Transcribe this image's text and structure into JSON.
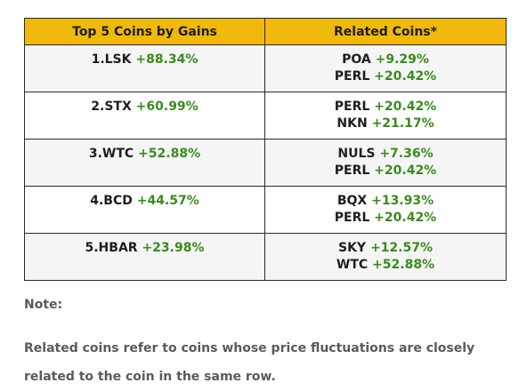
{
  "table": {
    "headers": [
      "Top 5 Coins by Gains",
      "Related Coins*"
    ],
    "rows": [
      {
        "top_symbol": "1.LSK",
        "top_gain": "+88.34%",
        "related": [
          {
            "symbol": "POA",
            "gain": "+9.29%"
          },
          {
            "symbol": "PERL",
            "gain": "+20.42%"
          }
        ]
      },
      {
        "top_symbol": "2.STX",
        "top_gain": "+60.99%",
        "related": [
          {
            "symbol": "PERL",
            "gain": "+20.42%"
          },
          {
            "symbol": "NKN",
            "gain": "+21.17%"
          }
        ]
      },
      {
        "top_symbol": "3.WTC",
        "top_gain": "+52.88%",
        "related": [
          {
            "symbol": "NULS",
            "gain": "+7.36%"
          },
          {
            "symbol": "PERL",
            "gain": "+20.42%"
          }
        ]
      },
      {
        "top_symbol": "4.BCD",
        "top_gain": "+44.57%",
        "related": [
          {
            "symbol": "BQX",
            "gain": "+13.93%"
          },
          {
            "symbol": "PERL",
            "gain": "+20.42%"
          }
        ]
      },
      {
        "top_symbol": "5.HBAR",
        "top_gain": "+23.98%",
        "related": [
          {
            "symbol": "SKY",
            "gain": "+12.57%"
          },
          {
            "symbol": "WTC",
            "gain": "+52.88%"
          }
        ]
      }
    ]
  },
  "note": {
    "label": "Note:",
    "text": "Related coins refer to coins whose price fluctuations are closely related to the coin in the same row."
  },
  "colors": {
    "header_bg": "#f0b90b",
    "gain_green": "#3a8a1f",
    "alt_row_bg": "#f5f5f5",
    "note_text": "#5a5a5a"
  }
}
